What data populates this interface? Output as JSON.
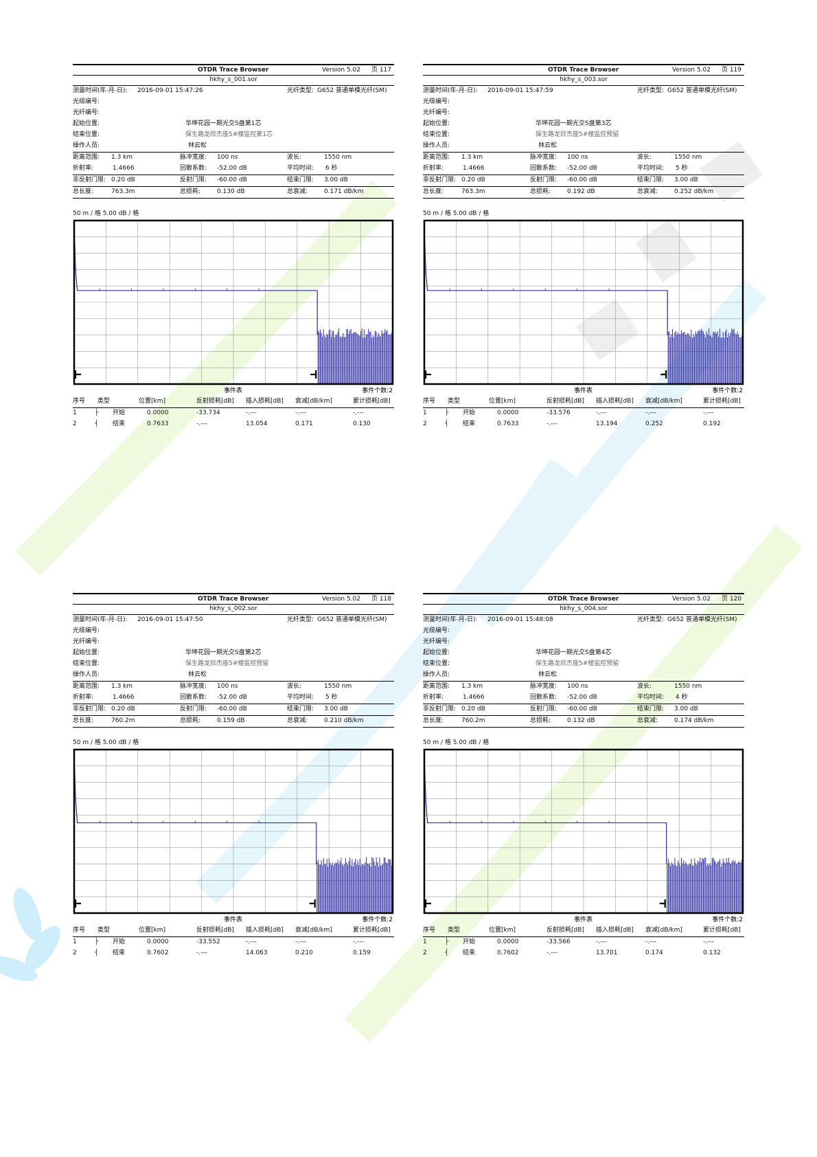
{
  "scale_label": "50 m / 格   5.00 dB / 格",
  "event_table_title": "事件表",
  "event_count_label": "事件个数:2",
  "labels": {
    "meas_time": "测量时间(年-月-日):",
    "fiber_type": "光纤类型:",
    "cable_no": "光缆编号:",
    "fiber_no": "光纤编号:",
    "start_pos": "起始位置:",
    "end_pos": "结束位置:",
    "operator": "操作人员:",
    "range": "距离范围:",
    "pulse": "脉冲宽度:",
    "wavelength": "波长:",
    "index": "折射率:",
    "backscatter": "回散系数:",
    "avg_time": "平均时间:",
    "nonrefl": "非反射门限:",
    "refl": "反射门限:",
    "end_thr": "结束门限:",
    "total_len": "总长度:",
    "total_loss": "总损耗:",
    "total_atten": "总衰减:"
  },
  "event_headers": [
    "序号",
    "类型",
    "位置[km]",
    "反射损耗[dB]",
    "插入损耗[dB]",
    "衰减[dB/km]",
    "累计损耗[dB]"
  ],
  "reports": [
    {
      "title": "OTDR Trace Browser",
      "version": "Version 5.02",
      "page": "页 117",
      "file": "hkhy_s_001.sor",
      "meas_time": "2016-09-01  15:47:26",
      "fiber_type": "G652 普通单模光纤(SM)",
      "start_pos": "华坤花园一期光交S盘第1芯",
      "end_pos": "保生路龙欣杰座5#楼监控第1芯",
      "operator": "林云松",
      "range": "1.3 km",
      "pulse": "100 ns",
      "wavelength": "1550 nm",
      "index": "1.4666",
      "backscatter": "-52.00 dB",
      "avg_time": "6 秒",
      "nonrefl": "0.20 dB",
      "refl": "-60.00 dB",
      "end_thr": "3.00 dB",
      "total_len": "763.3m",
      "total_loss": "0.130 dB",
      "total_atten": "0.171 dB/km",
      "events": [
        {
          "no": "1",
          "type": "开始",
          "pos": "0.0000",
          "refl": "-33.734",
          "ins": "-.---",
          "att": "-.---",
          "cum": "-.---"
        },
        {
          "no": "2",
          "type": "结束",
          "pos": "0.7633",
          "refl": "-.---",
          "ins": "13.054",
          "att": "0.171",
          "cum": "0.130"
        }
      ],
      "trace": {
        "end_km": 0.7633,
        "level_db": -10.7,
        "noise_db": -17.5
      }
    },
    {
      "title": "OTDR Trace Browser",
      "version": "Version 5.02",
      "page": "页 119",
      "file": "hkhy_s_003.sor",
      "meas_time": "2016-09-01  15:47:59",
      "fiber_type": "G652 普通单模光纤(SM)",
      "start_pos": "华坤花园一期光交S盘第3芯",
      "end_pos": "保生路龙欣杰座5#楼监控预留",
      "operator": "林云松",
      "range": "1.3 km",
      "pulse": "100 ns",
      "wavelength": "1550 nm",
      "index": "1.4666",
      "backscatter": "-52.00 dB",
      "avg_time": "5 秒",
      "nonrefl": "0.20 dB",
      "refl": "-60.00 dB",
      "end_thr": "3.00 dB",
      "total_len": "763.3m",
      "total_loss": "0.192 dB",
      "total_atten": "0.252 dB/km",
      "events": [
        {
          "no": "1",
          "type": "开始",
          "pos": "0.0000",
          "refl": "-33.576",
          "ins": "-.---",
          "att": "-.---",
          "cum": "-.---"
        },
        {
          "no": "2",
          "type": "结束",
          "pos": "0.7633",
          "refl": "-.---",
          "ins": "13.194",
          "att": "0.252",
          "cum": "0.192"
        }
      ],
      "trace": {
        "end_km": 0.7633,
        "level_db": -10.7,
        "noise_db": -17.5
      }
    },
    {
      "title": "OTDR Trace Browser",
      "version": "Version 5.02",
      "page": "页 118",
      "file": "hkhy_s_002.sor",
      "meas_time": "2016-09-01  15:47:50",
      "fiber_type": "G652 普通单模光纤(SM)",
      "start_pos": "华坤花园一期光交S盘第2芯",
      "end_pos": "保生路龙欣杰座5#楼监控预留",
      "operator": "林云松",
      "range": "1.3 km",
      "pulse": "100 ns",
      "wavelength": "1550 nm",
      "index": "1.4666",
      "backscatter": "-52.00 dB",
      "avg_time": "5 秒",
      "nonrefl": "0.20 dB",
      "refl": "-60.00 dB",
      "end_thr": "3.00 dB",
      "total_len": "760.2m",
      "total_loss": "0.159 dB",
      "total_atten": "0.210 dB/km",
      "events": [
        {
          "no": "1",
          "type": "开始",
          "pos": "0.0000",
          "refl": "-33.552",
          "ins": "-.---",
          "att": "-.---",
          "cum": "-.---"
        },
        {
          "no": "2",
          "type": "结束",
          "pos": "0.7602",
          "refl": "-.---",
          "ins": "14.063",
          "att": "0.210",
          "cum": "0.159"
        }
      ],
      "trace": {
        "end_km": 0.7602,
        "level_db": -11.2,
        "noise_db": -17.5
      }
    },
    {
      "title": "OTDR Trace Browser",
      "version": "Version 5.02",
      "page": "页 120",
      "file": "hkhy_s_004.sor",
      "meas_time": "2016-09-01  15:48:08",
      "fiber_type": "G652 普通单模光纤(SM)",
      "start_pos": "华坤花园一期光交S盘第4芯",
      "end_pos": "保生路龙欣杰座5#楼监控预留",
      "operator": "林云松",
      "range": "1.3 km",
      "pulse": "100 ns",
      "wavelength": "1550 nm",
      "index": "1.4666",
      "backscatter": "-52.00 dB",
      "avg_time": "4 秒",
      "nonrefl": "0.20 dB",
      "refl": "-60.00 dB",
      "end_thr": "3.00 dB",
      "total_len": "760.2m",
      "total_loss": "0.132 dB",
      "total_atten": "0.174 dB/km",
      "events": [
        {
          "no": "1",
          "type": "开始",
          "pos": "0.0000",
          "refl": "-33.566",
          "ins": "-.---",
          "att": "-.---",
          "cum": "-.---"
        },
        {
          "no": "2",
          "type": "结束",
          "pos": "0.7602",
          "refl": "-.---",
          "ins": "13.701",
          "att": "0.174",
          "cum": "0.132"
        }
      ],
      "trace": {
        "end_km": 0.7602,
        "level_db": -11.2,
        "noise_db": -17.5
      }
    }
  ],
  "chart_data": [
    {
      "type": "line",
      "x_unit": "km",
      "y_unit": "dB",
      "x_grid_step": 0.05,
      "y_grid_step": 5,
      "xlim": [
        0,
        1.0
      ],
      "ylim": [
        -25,
        0
      ],
      "series": [
        {
          "x": [
            0,
            0.005,
            0.01,
            0.7633
          ],
          "y": [
            -1,
            -8,
            -10.7,
            -10.7
          ]
        }
      ]
    },
    {
      "type": "line",
      "x_unit": "km",
      "y_unit": "dB",
      "x_grid_step": 0.05,
      "y_grid_step": 5,
      "xlim": [
        0,
        1.0
      ],
      "ylim": [
        -25,
        0
      ],
      "series": [
        {
          "x": [
            0,
            0.005,
            0.01,
            0.7633
          ],
          "y": [
            -1,
            -8,
            -10.7,
            -10.7
          ]
        }
      ]
    },
    {
      "type": "line",
      "x_unit": "km",
      "y_unit": "dB",
      "x_grid_step": 0.05,
      "y_grid_step": 5,
      "xlim": [
        0,
        1.0
      ],
      "ylim": [
        -25,
        0
      ],
      "series": [
        {
          "x": [
            0,
            0.005,
            0.01,
            0.7602
          ],
          "y": [
            -1,
            -8,
            -11.2,
            -11.2
          ]
        }
      ]
    },
    {
      "type": "line",
      "x_unit": "km",
      "y_unit": "dB",
      "x_grid_step": 0.05,
      "y_grid_step": 5,
      "xlim": [
        0,
        1.0
      ],
      "ylim": [
        -25,
        0
      ],
      "series": [
        {
          "x": [
            0,
            0.005,
            0.01,
            0.7602
          ],
          "y": [
            -1,
            -8,
            -11.2,
            -11.2
          ]
        }
      ]
    }
  ]
}
